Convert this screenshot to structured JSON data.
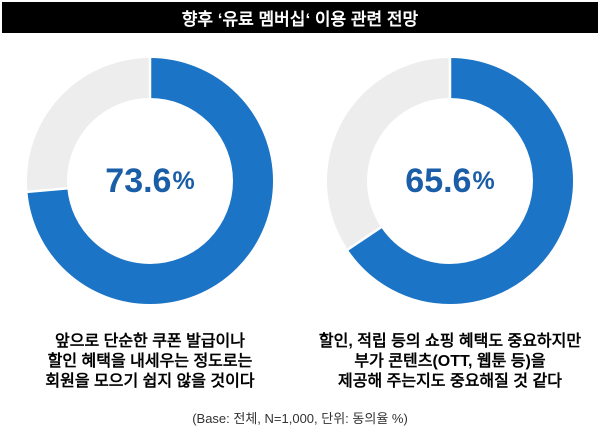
{
  "title": "향후 ‘유료 멤버십‘ 이용 관련 전망",
  "footnote": "(Base: 전체, N=1,000, 단위: 동의율 %)",
  "colors": {
    "filled": "#1B74C5",
    "rest": "#EDEDED",
    "label": "#1A5EA8",
    "title_bg": "#000000",
    "title_fg": "#FFFFFF"
  },
  "chart_data": [
    {
      "type": "donut",
      "value": 73.6,
      "remainder": 26.4,
      "label_number": "73.6",
      "label_suffix": "%",
      "start_angle_deg": 0,
      "direction": "clockwise",
      "caption_lines": [
        "앞으로 단순한 쿠폰 발급이나",
        "할인 혜택을 내세우는 정도로는",
        "회원을 모으기 쉽지 않을 것이다"
      ]
    },
    {
      "type": "donut",
      "value": 65.6,
      "remainder": 34.4,
      "label_number": "65.6",
      "label_suffix": "%",
      "start_angle_deg": 0,
      "direction": "clockwise",
      "caption_lines": [
        "할인, 적립 등의 쇼핑 혜택도 중요하지만",
        "부가 콘텐츠(OTT, 웹툰 등)을",
        "제공해 주는지도 중요해질 것 같다"
      ]
    }
  ]
}
